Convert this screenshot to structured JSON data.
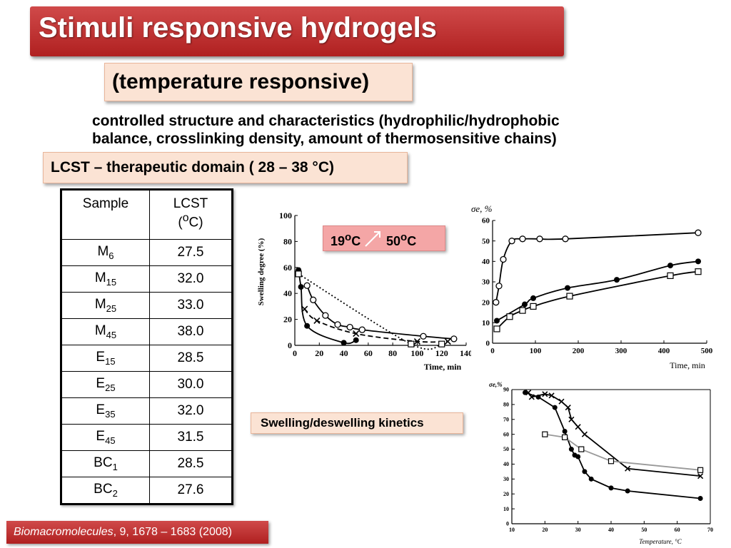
{
  "header": {
    "title": "Stimuli responsive hydrogels",
    "subtitle": "(temperature responsive)"
  },
  "description": {
    "line1": "controlled structure and characteristics (hydrophilic/hydrophobic",
    "line2": "balance, crosslinking density, amount of thermosensitive chains)"
  },
  "lcst_label": "LCST – therapeutic domain ( 28 – 38 °C)",
  "table": {
    "headers": {
      "sample": "Sample",
      "lcst_line1": "LCST",
      "lcst_line2_pre": "(",
      "lcst_line2_sup": "o",
      "lcst_line2_post": "C)"
    },
    "rows": [
      {
        "base": "M",
        "sub": "6",
        "value": "27.5"
      },
      {
        "base": "M",
        "sub": "15",
        "value": "32.0"
      },
      {
        "base": "M",
        "sub": "25",
        "value": "33.0"
      },
      {
        "base": "M",
        "sub": "45",
        "value": "38.0"
      },
      {
        "base": "E",
        "sub": "15",
        "value": "28.5"
      },
      {
        "base": "E",
        "sub": "25",
        "value": "30.0"
      },
      {
        "base": "E",
        "sub": "35",
        "value": "32.0"
      },
      {
        "base": "E",
        "sub": "45",
        "value": "31.5"
      },
      {
        "base": "BC",
        "sub": "1",
        "value": "28.5"
      },
      {
        "base": "BC",
        "sub": "2",
        "value": "27.6"
      }
    ]
  },
  "temp_label": {
    "from_num": "19",
    "from_sup": "o",
    "from_unit": "C",
    "to_num": "50",
    "to_sup": "o",
    "to_unit": "C"
  },
  "swelling_label": "Swelling/deswelling kinetics",
  "reference": {
    "journal": "Biomacromolecules",
    "details": ", 9, 1678 – 1683 (2008)"
  },
  "colors": {
    "title_bg": "#c0302f",
    "label_bg": "#fbe3d4",
    "temp_bg": "#f4a6a6"
  },
  "chart_data": [
    {
      "type": "scatter",
      "xlabel": "Time, min",
      "ylabel": "Swelling degree (%)",
      "xlim": [
        0,
        140
      ],
      "ylim": [
        0,
        100
      ],
      "xticks": [
        "0",
        "20",
        "40",
        "60",
        "80",
        "100",
        "120",
        "140"
      ],
      "yticks": [
        "0",
        "20",
        "40",
        "60",
        "80",
        "100"
      ],
      "series": [
        {
          "marker": "open-circle",
          "x": [
            10,
            15,
            25,
            35,
            45,
            55,
            105,
            130
          ],
          "y": [
            46,
            35,
            23,
            16,
            14,
            12,
            7,
            5
          ]
        },
        {
          "marker": "cross",
          "x": [
            8,
            18,
            50,
            100,
            125
          ],
          "y": [
            28,
            19,
            9,
            3,
            3
          ]
        },
        {
          "marker": "filled-circle",
          "x": [
            3,
            5,
            10,
            40,
            50
          ],
          "y": [
            58,
            45,
            15,
            2,
            4
          ]
        },
        {
          "marker": "open-square",
          "x": [
            3,
            95,
            120
          ],
          "y": [
            55,
            1,
            1
          ]
        }
      ]
    },
    {
      "type": "line",
      "ylabel": "σe, %",
      "xlabel": "Time, min",
      "xlim": [
        0,
        500
      ],
      "ylim": [
        0,
        60
      ],
      "xticks": [
        "0",
        "100",
        "200",
        "300",
        "400",
        "500"
      ],
      "yticks": [
        "0",
        "10",
        "20",
        "30",
        "40",
        "50",
        "60"
      ],
      "series": [
        {
          "marker": "open-circle",
          "x": [
            8,
            15,
            25,
            45,
            70,
            110,
            170,
            480
          ],
          "y": [
            20,
            28,
            41,
            50,
            51,
            51,
            51,
            54
          ]
        },
        {
          "marker": "filled-circle",
          "x": [
            10,
            75,
            95,
            175,
            290,
            415,
            480
          ],
          "y": [
            11,
            19,
            22,
            27,
            31,
            38,
            40
          ]
        },
        {
          "marker": "open-square",
          "x": [
            10,
            40,
            70,
            95,
            180,
            415,
            480
          ],
          "y": [
            7,
            13,
            16,
            18,
            23,
            33,
            35
          ]
        }
      ]
    },
    {
      "type": "line",
      "ylabel": "σe,%",
      "xlabel": "Temperature, °C",
      "xlim": [
        10,
        70
      ],
      "ylim": [
        0,
        90
      ],
      "xticks": [
        "10",
        "20",
        "30",
        "40",
        "50",
        "60",
        "70"
      ],
      "yticks": [
        "0",
        "10",
        "20",
        "30",
        "40",
        "50",
        "60",
        "70",
        "80",
        "90"
      ],
      "series": [
        {
          "marker": "cross",
          "x": [
            15,
            16,
            20,
            22,
            25,
            27,
            28,
            30,
            32,
            45,
            67
          ],
          "y": [
            88,
            85,
            87,
            86,
            82,
            78,
            70,
            65,
            60,
            37,
            32
          ]
        },
        {
          "marker": "filled-circle",
          "x": [
            14,
            18,
            23,
            26,
            28,
            29,
            30,
            32,
            34,
            40,
            45,
            67
          ],
          "y": [
            88,
            85,
            78,
            62,
            50,
            46,
            45,
            35,
            30,
            24,
            22,
            17
          ]
        },
        {
          "marker": "open-square",
          "x": [
            20,
            26,
            31,
            40,
            67
          ],
          "y": [
            60,
            58,
            50,
            42,
            36
          ]
        }
      ]
    }
  ]
}
